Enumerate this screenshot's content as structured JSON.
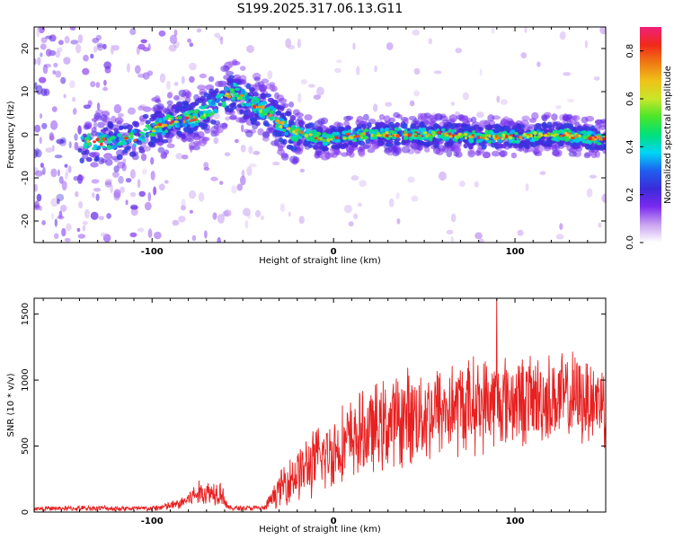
{
  "title": "S199.2025.317.06.13.G11",
  "colors": {
    "snr_line": "#e82020",
    "colormap": [
      "#ffffff",
      "#c9a3f0",
      "#7a2af0",
      "#3a2bd8",
      "#1f5ff0",
      "#00d6f5",
      "#00e07a",
      "#49e62a",
      "#c8e62a",
      "#f0c219",
      "#f07a14",
      "#f02a1a",
      "#f0207a"
    ]
  },
  "chart_data": [
    {
      "type": "heatmap",
      "name": "spectrogram",
      "xlabel": "Height of straight line (km)",
      "ylabel": "Frequency (Hz)",
      "xlim": [
        -165,
        150
      ],
      "ylim": [
        -25,
        25
      ],
      "xticks": [
        -100,
        0,
        100
      ],
      "xtick_labels": [
        "-100",
        "0",
        "100"
      ],
      "yticks": [
        -20,
        -10,
        0,
        10,
        20
      ],
      "ytick_labels": [
        "-20",
        "-10",
        "0",
        "10",
        "20"
      ],
      "ridge": [
        {
          "x": -135,
          "y": -2
        },
        {
          "x": -110,
          "y": -1
        },
        {
          "x": -100,
          "y": 1
        },
        {
          "x": -90,
          "y": 3
        },
        {
          "x": -75,
          "y": 4
        },
        {
          "x": -62,
          "y": 8
        },
        {
          "x": -55,
          "y": 10
        },
        {
          "x": -45,
          "y": 7
        },
        {
          "x": -35,
          "y": 5
        },
        {
          "x": -25,
          "y": 1
        },
        {
          "x": -15,
          "y": 0
        },
        {
          "x": -5,
          "y": -1
        },
        {
          "x": 0,
          "y": -0.5
        },
        {
          "x": 20,
          "y": 0
        },
        {
          "x": 40,
          "y": 0.2
        },
        {
          "x": 60,
          "y": 0
        },
        {
          "x": 80,
          "y": -0.5
        },
        {
          "x": 100,
          "y": -0.5
        },
        {
          "x": 120,
          "y": 0.2
        },
        {
          "x": 150,
          "y": -1
        }
      ],
      "colorbar": {
        "label": "Normalized spectral amplitude",
        "range": [
          0,
          0.9
        ],
        "ticks": [
          0.0,
          0.2,
          0.4,
          0.6,
          0.8
        ],
        "tick_labels": [
          "0.0",
          "0.2",
          "0.4",
          "0.6",
          "0.8"
        ]
      }
    },
    {
      "type": "line",
      "name": "snr",
      "xlabel": "Height of straight line (km)",
      "ylabel": "SNR (10 * v/v)",
      "xlim": [
        -165,
        150
      ],
      "ylim": [
        0,
        1620
      ],
      "xticks": [
        -100,
        0,
        100
      ],
      "xtick_labels": [
        "-100",
        "0",
        "100"
      ],
      "yticks": [
        0,
        500,
        1000,
        1500
      ],
      "ytick_labels": [
        "0",
        "500",
        "1000",
        "1500"
      ],
      "series": [
        {
          "name": "SNR",
          "envelope": [
            {
              "x": -165,
              "mean": 25,
              "spread": 15
            },
            {
              "x": -130,
              "mean": 30,
              "spread": 20
            },
            {
              "x": -100,
              "mean": 25,
              "spread": 20
            },
            {
              "x": -85,
              "mean": 60,
              "spread": 40
            },
            {
              "x": -75,
              "mean": 140,
              "spread": 90
            },
            {
              "x": -62,
              "mean": 160,
              "spread": 100
            },
            {
              "x": -58,
              "mean": 30,
              "spread": 20
            },
            {
              "x": -38,
              "mean": 30,
              "spread": 20
            },
            {
              "x": -33,
              "mean": 120,
              "spread": 80
            },
            {
              "x": -25,
              "mean": 250,
              "spread": 180
            },
            {
              "x": -10,
              "mean": 380,
              "spread": 250
            },
            {
              "x": 10,
              "mean": 550,
              "spread": 300
            },
            {
              "x": 40,
              "mean": 720,
              "spread": 350
            },
            {
              "x": 70,
              "mean": 800,
              "spread": 350
            },
            {
              "x": 100,
              "mean": 850,
              "spread": 330
            },
            {
              "x": 130,
              "mean": 860,
              "spread": 330
            },
            {
              "x": 150,
              "mean": 850,
              "spread": 320
            }
          ],
          "peak": {
            "x": 90,
            "y": 1620
          }
        }
      ]
    }
  ]
}
